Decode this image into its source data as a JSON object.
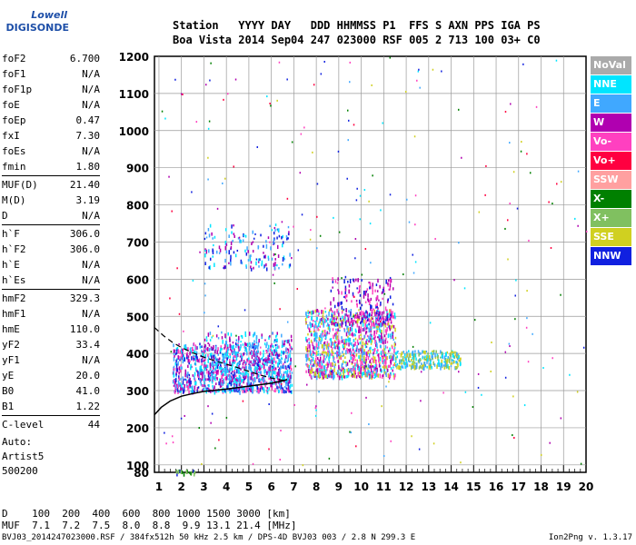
{
  "logo": {
    "line1": "Lowell",
    "line2": "DIGISONDE"
  },
  "header": {
    "line1": "Station   YYYY DAY   DDD HHMMSS P1  FFS S AXN PPS IGA PS",
    "line2": "Boa Vista 2014 Sep04 247 023000 RSF 005 2 713 100 03+ C0"
  },
  "params": [
    {
      "k": "foF2",
      "v": "6.700"
    },
    {
      "k": "foF1",
      "v": "N/A"
    },
    {
      "k": "foF1p",
      "v": "N/A"
    },
    {
      "k": "foE",
      "v": "N/A"
    },
    {
      "k": "foEp",
      "v": "0.47"
    },
    {
      "k": "fxI",
      "v": "7.30"
    },
    {
      "k": "foEs",
      "v": "N/A"
    },
    {
      "k": "fmin",
      "v": "1.80"
    },
    {
      "k": "MUF(D)",
      "v": "21.40",
      "sepBefore": true
    },
    {
      "k": "M(D)",
      "v": "3.19"
    },
    {
      "k": "D",
      "v": "N/A"
    },
    {
      "k": "h`F",
      "v": "306.0",
      "sepBefore": true
    },
    {
      "k": "h`F2",
      "v": "306.0"
    },
    {
      "k": "h`E",
      "v": "N/A"
    },
    {
      "k": "h`Es",
      "v": "N/A"
    },
    {
      "k": "hmF2",
      "v": "329.3",
      "sepBefore": true
    },
    {
      "k": "hmF1",
      "v": "N/A"
    },
    {
      "k": "hmE",
      "v": "110.0"
    },
    {
      "k": "yF2",
      "v": "33.4"
    },
    {
      "k": "yF1",
      "v": "N/A"
    },
    {
      "k": "yE",
      "v": "20.0"
    },
    {
      "k": "B0",
      "v": "41.0"
    },
    {
      "k": "B1",
      "v": "1.22"
    },
    {
      "k": "C-level",
      "v": "44",
      "sepBefore": true
    }
  ],
  "auto": {
    "line1": "Auto:",
    "line2": "Artist5",
    "line3": "500200"
  },
  "legend": [
    {
      "label": "NoVal",
      "color": "#aaaaaa"
    },
    {
      "label": "NNE",
      "color": "#00e5ff"
    },
    {
      "label": "E",
      "color": "#40a8ff"
    },
    {
      "label": "W",
      "color": "#b000b0"
    },
    {
      "label": "Vo-",
      "color": "#ff40c0"
    },
    {
      "label": "Vo+",
      "color": "#ff0040"
    },
    {
      "label": "SSW",
      "color": "#ffa0a0"
    },
    {
      "label": "X-",
      "color": "#008000"
    },
    {
      "label": "X+",
      "color": "#80c060"
    },
    {
      "label": "SSE",
      "color": "#d0d020"
    },
    {
      "label": "NNW",
      "color": "#1020e0"
    }
  ],
  "mufd": {
    "line1": "D    100  200  400  600  800 1000 1500 3000 [km]",
    "line2": "MUF  7.1  7.2  7.5  8.0  8.8  9.9 13.1 21.4 [MHz]"
  },
  "footer": "BVJ03_2014247023000.RSF / 384fx512h 50 kHz 2.5 km / DPS-4D BVJ03 003 / 2.8 N 299.3 E",
  "version": "Ion2Png v. 1.3.17",
  "chart_data": {
    "type": "scatter",
    "x_ticks": [
      1,
      2,
      3,
      4,
      5,
      6,
      7,
      8,
      9,
      10,
      11,
      12,
      13,
      14,
      15,
      16,
      17,
      18,
      19,
      20
    ],
    "y_ticks": [
      80,
      100,
      200,
      300,
      400,
      500,
      600,
      700,
      800,
      900,
      1000,
      1100,
      1200
    ],
    "xlim": [
      0.8,
      20
    ],
    "ylim": [
      80,
      1200
    ],
    "grid": true,
    "trace": {
      "x": [
        0.8,
        1.1,
        1.5,
        2.0,
        2.5,
        3.0,
        3.5,
        4.0,
        4.5,
        5.0,
        5.5,
        6.0,
        6.5,
        6.7
      ],
      "y": [
        235,
        255,
        272,
        285,
        292,
        298,
        301,
        304,
        308,
        312,
        316,
        320,
        326,
        330
      ]
    },
    "trace_dashed": {
      "x": [
        0.8,
        1.2,
        1.6,
        2.0,
        2.5,
        3.0,
        3.5,
        4.0,
        4.5,
        5.0,
        5.5,
        6.0,
        6.5,
        6.7
      ],
      "y": [
        470,
        448,
        430,
        416,
        402,
        390,
        380,
        371,
        362,
        352,
        342,
        334,
        328,
        330
      ]
    },
    "clusters": [
      {
        "name": "o-trace",
        "xr": [
          1.6,
          6.9
        ],
        "yr": [
          300,
          430
        ],
        "n": 900,
        "colors": [
          "#b000b0",
          "#40a8ff",
          "#00e5ff",
          "#1020e0",
          "#ff40c0"
        ]
      },
      {
        "name": "o-trace-upper",
        "xr": [
          3.0,
          6.9
        ],
        "yr": [
          330,
          460
        ],
        "n": 350,
        "colors": [
          "#40a8ff",
          "#00e5ff",
          "#b000b0"
        ]
      },
      {
        "name": "f2-spread",
        "xr": [
          7.5,
          11.5
        ],
        "yr": [
          340,
          520
        ],
        "n": 1100,
        "colors": [
          "#b000b0",
          "#40a8ff",
          "#ff40c0",
          "#d0d020",
          "#00e5ff"
        ]
      },
      {
        "name": "f2-top",
        "xr": [
          8.6,
          11.4
        ],
        "yr": [
          480,
          610
        ],
        "n": 220,
        "colors": [
          "#b000b0",
          "#1020e0",
          "#ff40c0"
        ]
      },
      {
        "name": "x-trace",
        "xr": [
          11.5,
          14.4
        ],
        "yr": [
          365,
          410
        ],
        "n": 260,
        "colors": [
          "#d0d020",
          "#80c060",
          "#00e5ff",
          "#40a8ff"
        ]
      },
      {
        "name": "multi-hop",
        "xr": [
          3.0,
          6.9
        ],
        "yr": [
          630,
          750
        ],
        "n": 150,
        "colors": [
          "#1020e0",
          "#40a8ff",
          "#00e5ff",
          "#b000b0"
        ]
      },
      {
        "name": "low",
        "xr": [
          1.6,
          2.6
        ],
        "yr": [
          80,
          88
        ],
        "n": 20,
        "colors": [
          "#008000",
          "#80c060",
          "#1020e0"
        ]
      }
    ]
  }
}
